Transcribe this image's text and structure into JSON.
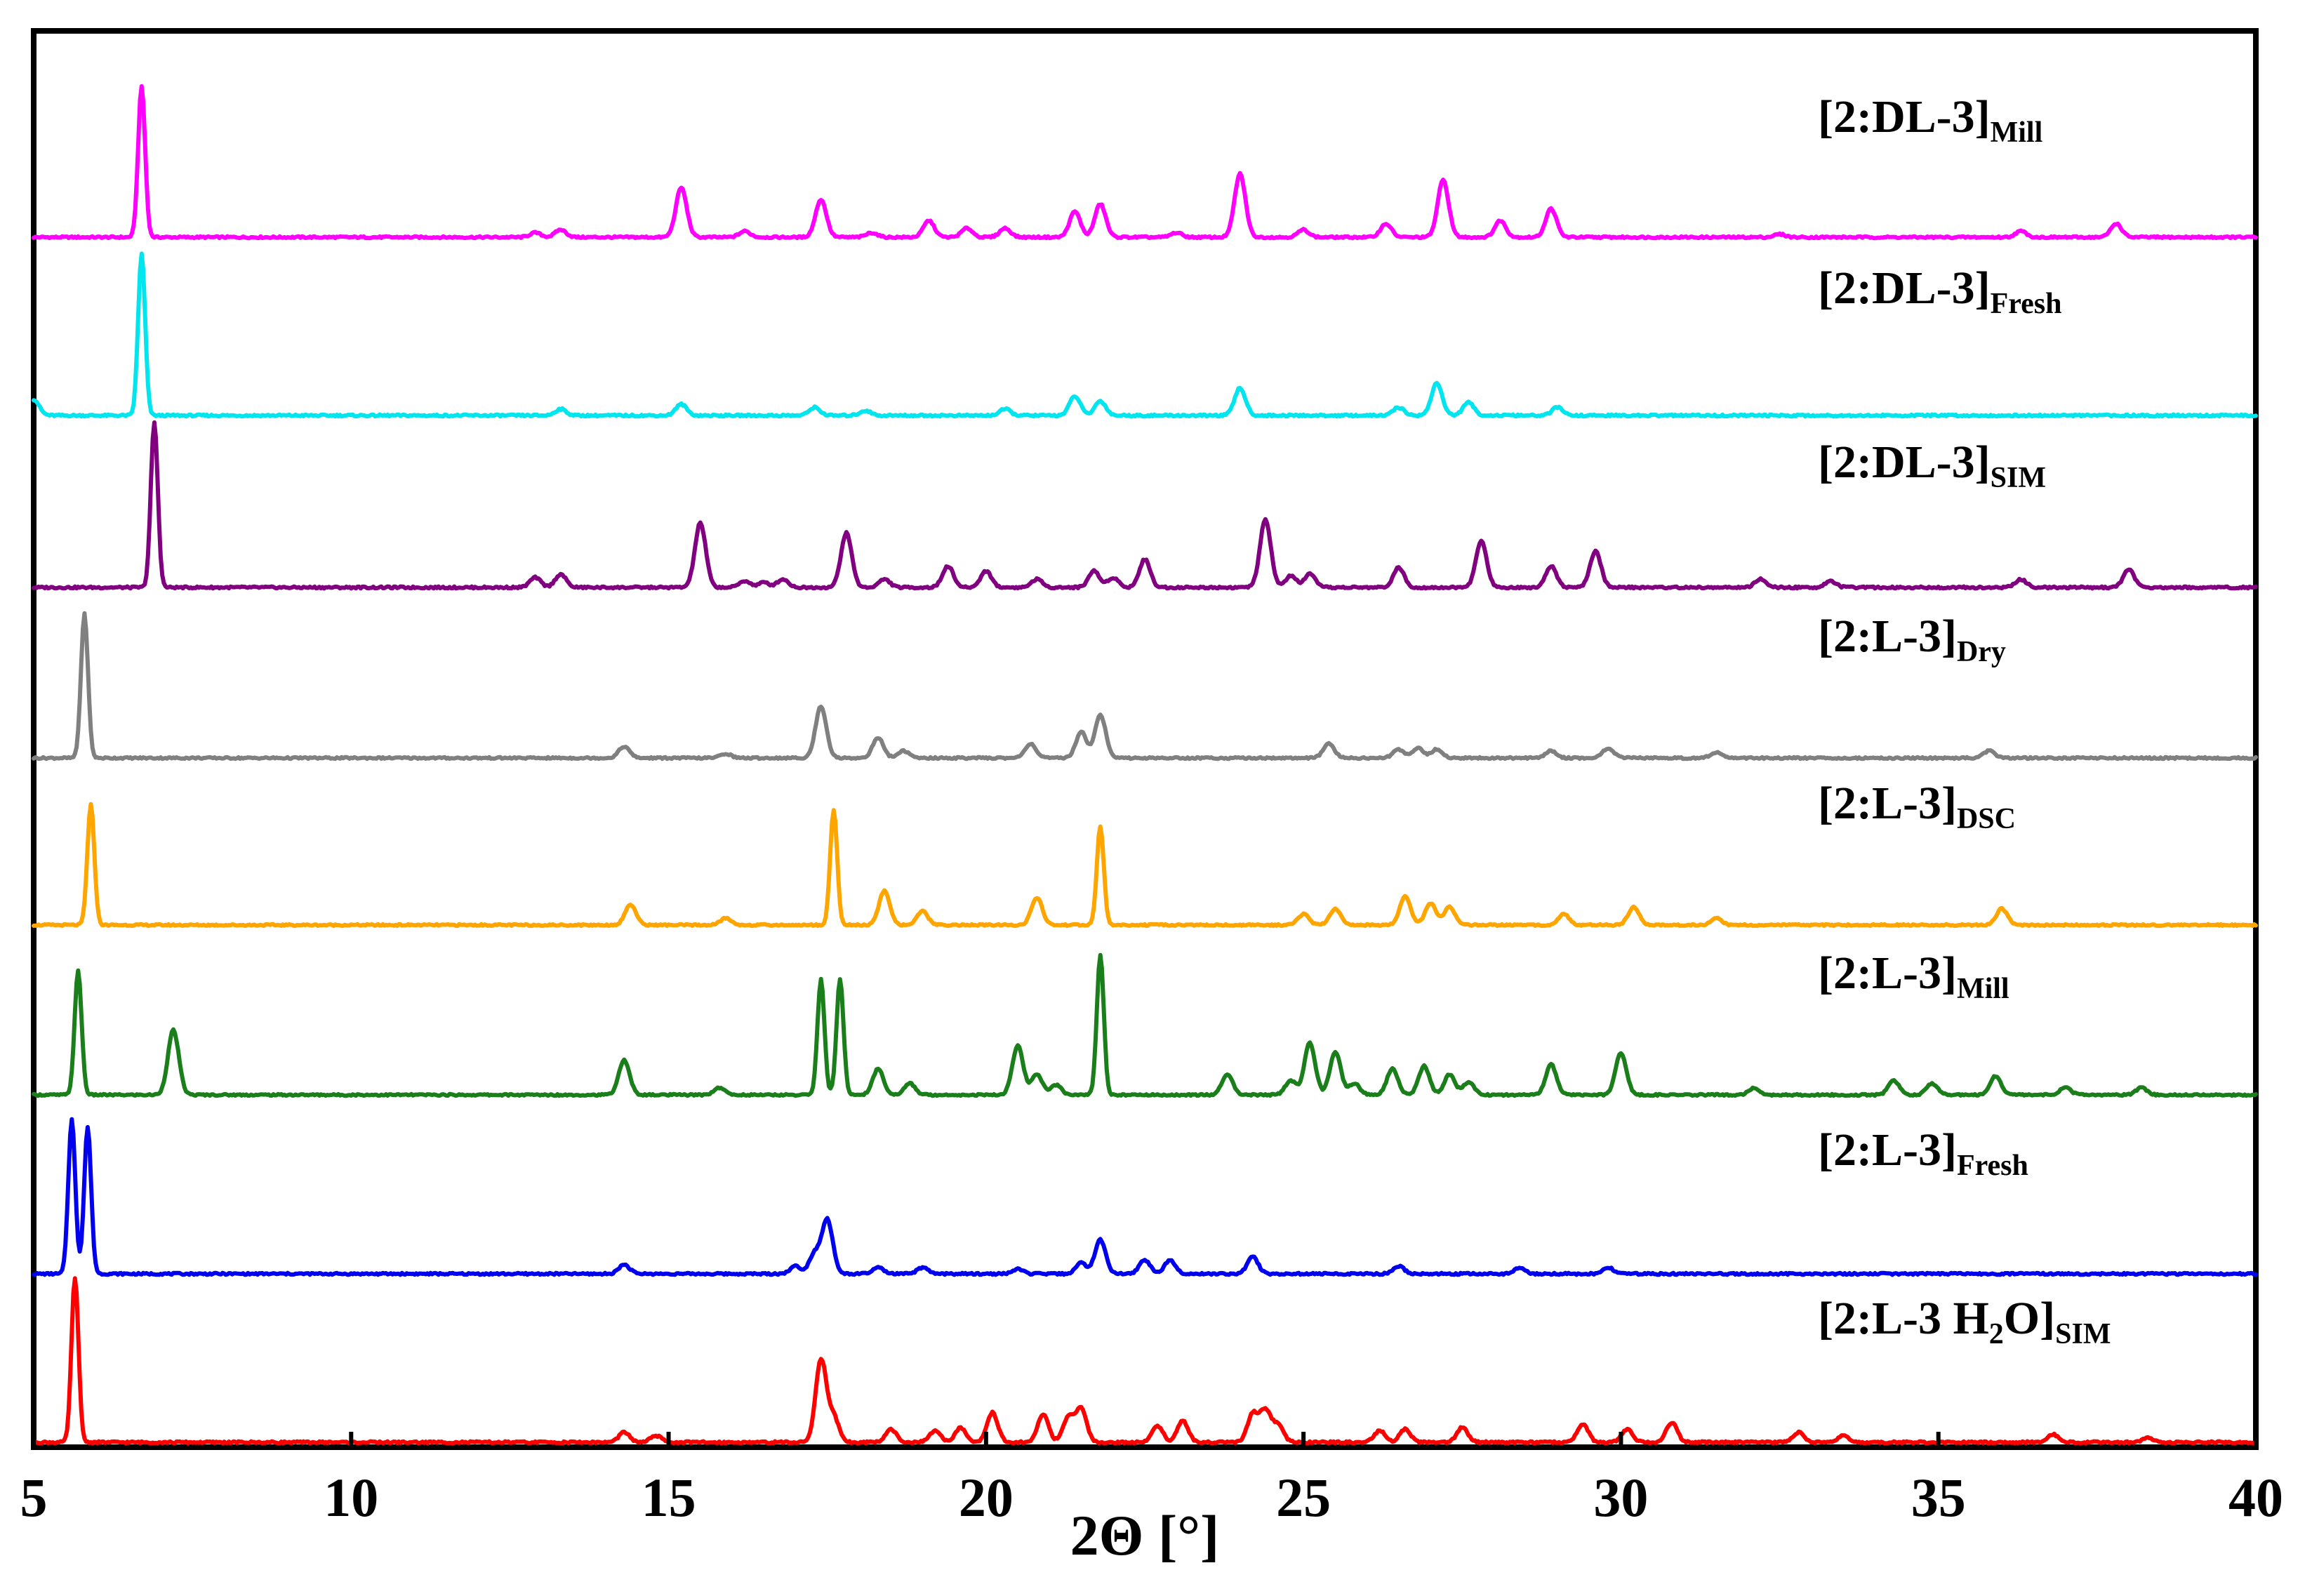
{
  "chart_data": {
    "type": "line",
    "xlabel": "2Θ [°]",
    "xlim": [
      5,
      40
    ],
    "xticks": [
      5,
      10,
      15,
      20,
      25,
      30,
      35,
      40
    ],
    "y_axis_visible": false,
    "grid": false,
    "legend": "labels above each trace, right side",
    "series": [
      {
        "name": "[2:DL-3]Mill",
        "label_main": "[2:DL-3]",
        "label_sub": "Mill",
        "color": "#ff00ff",
        "peaks": [
          [
            6.7,
            1.0
          ],
          [
            12.9,
            0.03
          ],
          [
            13.3,
            0.05
          ],
          [
            15.2,
            0.33
          ],
          [
            16.2,
            0.04
          ],
          [
            17.4,
            0.25
          ],
          [
            18.2,
            0.03
          ],
          [
            19.1,
            0.11
          ],
          [
            19.7,
            0.06
          ],
          [
            20.3,
            0.06
          ],
          [
            21.4,
            0.17
          ],
          [
            21.8,
            0.22
          ],
          [
            23.0,
            0.03
          ],
          [
            24.0,
            0.42
          ],
          [
            25.0,
            0.05
          ],
          [
            26.3,
            0.09
          ],
          [
            27.2,
            0.38
          ],
          [
            28.1,
            0.11
          ],
          [
            28.9,
            0.19
          ],
          [
            32.5,
            0.02
          ],
          [
            36.3,
            0.04
          ],
          [
            37.8,
            0.09
          ]
        ]
      },
      {
        "name": "[2:DL-3]Fresh",
        "label_main": "[2:DL-3]",
        "label_sub": "Fresh",
        "color": "#00e5ee",
        "peaks": [
          [
            5.0,
            0.1
          ],
          [
            6.7,
            1.0
          ],
          [
            13.3,
            0.04
          ],
          [
            15.2,
            0.07
          ],
          [
            17.3,
            0.05
          ],
          [
            18.1,
            0.03
          ],
          [
            20.3,
            0.04
          ],
          [
            21.4,
            0.12
          ],
          [
            21.8,
            0.09
          ],
          [
            24.0,
            0.17
          ],
          [
            26.5,
            0.05
          ],
          [
            27.1,
            0.2
          ],
          [
            27.6,
            0.08
          ],
          [
            29.0,
            0.05
          ]
        ]
      },
      {
        "name": "[2:DL-3]SIM",
        "label_main": "[2:DL-3]",
        "label_sub": "SIM",
        "color": "#800080",
        "peaks": [
          [
            6.9,
            1.0
          ],
          [
            12.9,
            0.06
          ],
          [
            13.3,
            0.08
          ],
          [
            15.5,
            0.39
          ],
          [
            16.2,
            0.04
          ],
          [
            16.5,
            0.03
          ],
          [
            16.8,
            0.05
          ],
          [
            17.8,
            0.33
          ],
          [
            18.4,
            0.05
          ],
          [
            19.4,
            0.13
          ],
          [
            20.0,
            0.1
          ],
          [
            20.8,
            0.05
          ],
          [
            21.7,
            0.1
          ],
          [
            22.0,
            0.06
          ],
          [
            22.5,
            0.17
          ],
          [
            24.4,
            0.41
          ],
          [
            24.8,
            0.07
          ],
          [
            25.1,
            0.08
          ],
          [
            26.5,
            0.12
          ],
          [
            27.8,
            0.28
          ],
          [
            28.9,
            0.13
          ],
          [
            29.6,
            0.22
          ],
          [
            32.2,
            0.05
          ],
          [
            33.3,
            0.04
          ],
          [
            36.3,
            0.05
          ],
          [
            38.0,
            0.11
          ]
        ]
      },
      {
        "name": "[2:L-3]Dry",
        "label_main": "[2:L-3]",
        "label_sub": "Dry",
        "color": "#808080",
        "peaks": [
          [
            5.8,
            1.0
          ],
          [
            14.3,
            0.08
          ],
          [
            15.9,
            0.03
          ],
          [
            17.4,
            0.36
          ],
          [
            18.3,
            0.14
          ],
          [
            18.7,
            0.05
          ],
          [
            20.7,
            0.1
          ],
          [
            21.5,
            0.18
          ],
          [
            21.8,
            0.3
          ],
          [
            25.4,
            0.1
          ],
          [
            26.5,
            0.06
          ],
          [
            26.8,
            0.07
          ],
          [
            27.1,
            0.06
          ],
          [
            28.9,
            0.05
          ],
          [
            29.8,
            0.07
          ],
          [
            31.5,
            0.04
          ],
          [
            35.8,
            0.05
          ]
        ]
      },
      {
        "name": "[2:L-3]DSC",
        "label_main": "[2:L-3]",
        "label_sub": "DSC",
        "color": "#ffa500",
        "peaks": [
          [
            5.9,
            0.88
          ],
          [
            14.4,
            0.15
          ],
          [
            15.9,
            0.05
          ],
          [
            17.6,
            0.84
          ],
          [
            18.4,
            0.25
          ],
          [
            19.0,
            0.1
          ],
          [
            20.8,
            0.2
          ],
          [
            21.8,
            0.72
          ],
          [
            25.0,
            0.08
          ],
          [
            25.5,
            0.12
          ],
          [
            26.6,
            0.21
          ],
          [
            27.0,
            0.16
          ],
          [
            27.3,
            0.13
          ],
          [
            29.1,
            0.08
          ],
          [
            30.2,
            0.13
          ],
          [
            31.5,
            0.05
          ],
          [
            36.0,
            0.12
          ]
        ]
      },
      {
        "name": "[2:L-3]Mill",
        "label_main": "[2:L-3]",
        "label_sub": "Mill",
        "color": "#1a7f1a",
        "peaks": [
          [
            5.7,
            0.86
          ],
          [
            7.2,
            0.45
          ],
          [
            14.3,
            0.24
          ],
          [
            15.8,
            0.05
          ],
          [
            17.4,
            0.8
          ],
          [
            17.7,
            0.8
          ],
          [
            18.3,
            0.18
          ],
          [
            18.8,
            0.08
          ],
          [
            20.5,
            0.34
          ],
          [
            20.8,
            0.14
          ],
          [
            21.1,
            0.07
          ],
          [
            21.8,
            0.97
          ],
          [
            23.8,
            0.14
          ],
          [
            24.8,
            0.1
          ],
          [
            25.1,
            0.36
          ],
          [
            25.5,
            0.3
          ],
          [
            25.8,
            0.08
          ],
          [
            26.4,
            0.18
          ],
          [
            26.9,
            0.2
          ],
          [
            27.3,
            0.14
          ],
          [
            27.6,
            0.09
          ],
          [
            28.9,
            0.21
          ],
          [
            30.0,
            0.29
          ],
          [
            32.1,
            0.05
          ],
          [
            34.3,
            0.1
          ],
          [
            34.9,
            0.08
          ],
          [
            35.9,
            0.13
          ],
          [
            37.0,
            0.05
          ],
          [
            38.2,
            0.05
          ]
        ]
      },
      {
        "name": "[2:L-3]Fresh",
        "label_main": "[2:L-3]",
        "label_sub": "Fresh",
        "color": "#0000ee",
        "peaks": [
          [
            5.6,
            1.0
          ],
          [
            5.85,
            0.95
          ],
          [
            14.3,
            0.06
          ],
          [
            17.0,
            0.05
          ],
          [
            17.3,
            0.13
          ],
          [
            17.5,
            0.35
          ],
          [
            18.3,
            0.04
          ],
          [
            19.0,
            0.04
          ],
          [
            20.5,
            0.03
          ],
          [
            21.5,
            0.07
          ],
          [
            21.8,
            0.22
          ],
          [
            22.5,
            0.09
          ],
          [
            22.9,
            0.09
          ],
          [
            24.2,
            0.11
          ],
          [
            26.5,
            0.05
          ],
          [
            28.4,
            0.04
          ],
          [
            29.8,
            0.04
          ]
        ]
      },
      {
        "name": "[2:L-3 H2O]SIM",
        "label_main": "[2:L-3 H",
        "label_sub": "2",
        "label_tail": "O]",
        "label_sub2": "SIM",
        "color": "#ff0000",
        "peaks": [
          [
            5.65,
            1.0
          ],
          [
            14.3,
            0.06
          ],
          [
            14.8,
            0.04
          ],
          [
            17.4,
            0.5
          ],
          [
            17.6,
            0.15
          ],
          [
            18.5,
            0.08
          ],
          [
            19.2,
            0.07
          ],
          [
            19.6,
            0.09
          ],
          [
            20.1,
            0.18
          ],
          [
            20.9,
            0.17
          ],
          [
            21.3,
            0.15
          ],
          [
            21.5,
            0.2
          ],
          [
            22.7,
            0.1
          ],
          [
            23.1,
            0.13
          ],
          [
            24.2,
            0.17
          ],
          [
            24.4,
            0.19
          ],
          [
            24.6,
            0.1
          ],
          [
            26.2,
            0.07
          ],
          [
            26.6,
            0.08
          ],
          [
            27.5,
            0.09
          ],
          [
            29.4,
            0.11
          ],
          [
            30.1,
            0.08
          ],
          [
            30.8,
            0.12
          ],
          [
            32.8,
            0.06
          ],
          [
            33.5,
            0.04
          ],
          [
            36.8,
            0.05
          ],
          [
            38.3,
            0.03
          ]
        ]
      }
    ]
  }
}
